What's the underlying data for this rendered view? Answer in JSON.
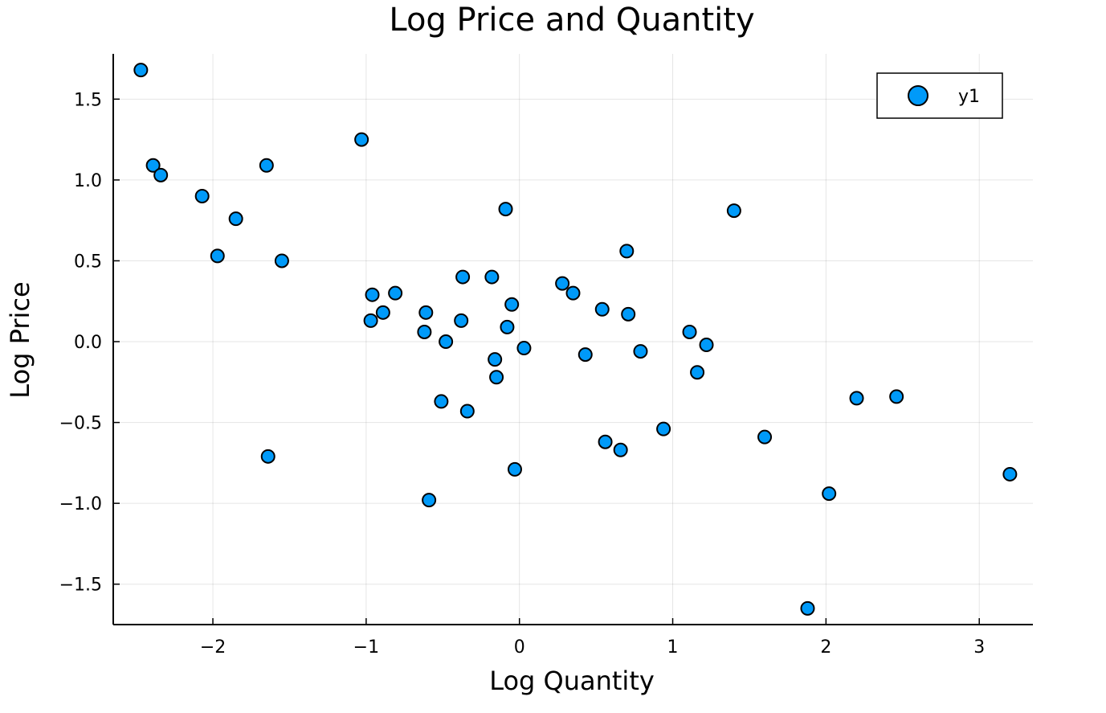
{
  "chart_data": {
    "type": "scatter",
    "title": "Log Price and Quantity",
    "xlabel": "Log Quantity",
    "ylabel": "Log Price",
    "xlim": [
      -2.65,
      3.35
    ],
    "ylim": [
      -1.75,
      1.78
    ],
    "xticks": [
      -2,
      -1,
      0,
      1,
      2,
      3
    ],
    "xtick_labels": [
      "−2",
      "−1",
      "0",
      "1",
      "2",
      "3"
    ],
    "yticks": [
      -1.5,
      -1.0,
      -0.5,
      0.0,
      0.5,
      1.0,
      1.5
    ],
    "ytick_labels": [
      "−1.5",
      "−1.0",
      "−0.5",
      "0.0",
      "0.5",
      "1.0",
      "1.5"
    ],
    "grid": true,
    "legend_position": "top-right",
    "series": [
      {
        "name": "y1",
        "color": "#009af9",
        "x": [
          -2.47,
          -2.39,
          -2.34,
          -2.07,
          -1.85,
          -1.97,
          -1.65,
          -1.55,
          -1.64,
          -1.03,
          -0.96,
          -0.97,
          -0.89,
          -0.81,
          -0.61,
          -0.62,
          -0.48,
          -0.51,
          -0.59,
          -0.37,
          -0.38,
          -0.34,
          -0.18,
          -0.16,
          -0.15,
          -0.09,
          -0.08,
          -0.05,
          -0.03,
          0.03,
          0.28,
          0.35,
          0.43,
          0.54,
          0.56,
          0.66,
          0.7,
          0.71,
          0.79,
          0.94,
          1.11,
          1.16,
          1.22,
          1.4,
          1.6,
          1.88,
          2.02,
          2.2,
          2.46,
          3.2
        ],
        "y": [
          1.68,
          1.09,
          1.03,
          0.9,
          0.76,
          0.53,
          1.09,
          0.5,
          -0.71,
          1.25,
          0.29,
          0.13,
          0.18,
          0.3,
          0.18,
          0.06,
          0.0,
          -0.37,
          -0.98,
          0.4,
          0.13,
          -0.43,
          0.4,
          -0.11,
          -0.22,
          0.82,
          0.09,
          0.23,
          -0.79,
          -0.04,
          0.36,
          0.3,
          -0.08,
          0.2,
          -0.62,
          -0.67,
          0.56,
          0.17,
          -0.06,
          -0.54,
          0.06,
          -0.19,
          -0.02,
          0.81,
          -0.59,
          -1.65,
          -0.94,
          -0.35,
          -0.34,
          -0.82
        ]
      }
    ]
  }
}
